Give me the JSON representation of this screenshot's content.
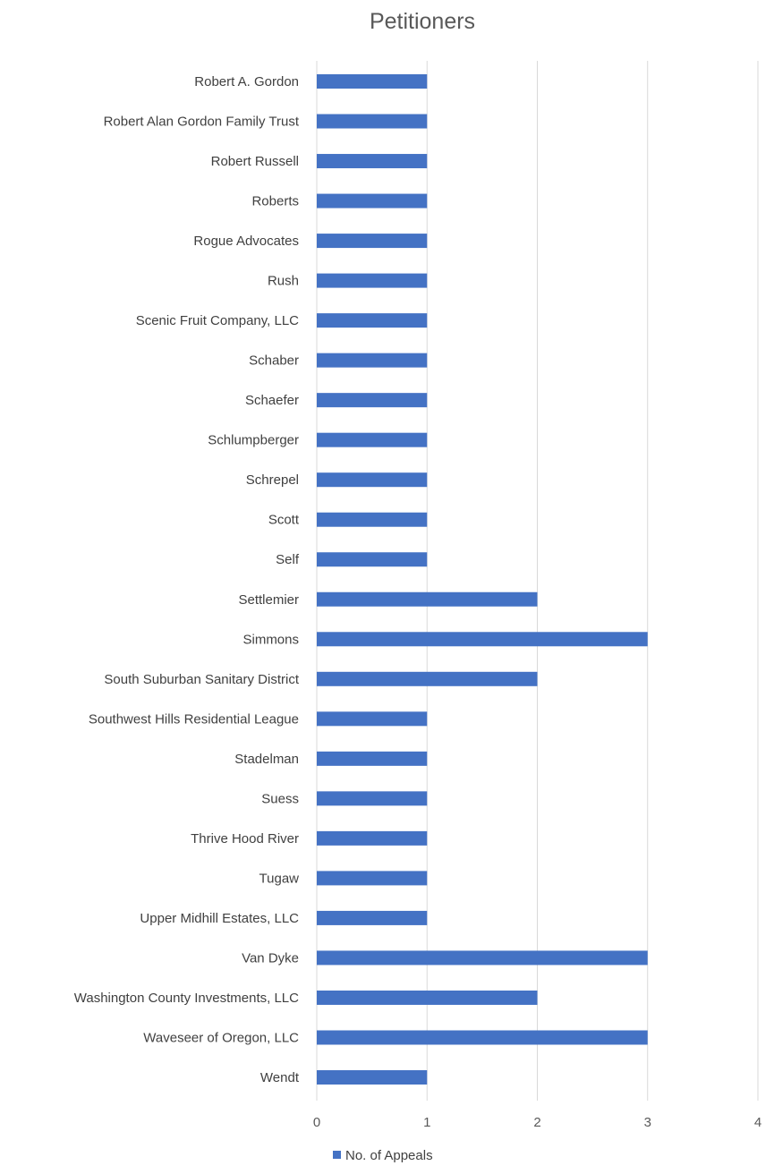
{
  "chart_data": {
    "type": "bar",
    "orientation": "horizontal",
    "title": "Petitioners",
    "categories": [
      "Robert A. Gordon",
      "Robert Alan Gordon Family Trust",
      "Robert Russell",
      "Roberts",
      "Rogue Advocates",
      "Rush",
      "Scenic Fruit Company, LLC",
      "Schaber",
      "Schaefer",
      "Schlumpberger",
      "Schrepel",
      "Scott",
      "Self",
      "Settlemier",
      "Simmons",
      "South Suburban Sanitary District",
      "Southwest Hills Residential League",
      "Stadelman",
      "Suess",
      "Thrive Hood River",
      "Tugaw",
      "Upper Midhill Estates, LLC",
      "Van Dyke",
      "Washington County Investments, LLC",
      "Waveseer of Oregon, LLC",
      "Wendt"
    ],
    "series": [
      {
        "name": "No. of Appeals",
        "color": "#4472c4",
        "values": [
          1,
          1,
          1,
          1,
          1,
          1,
          1,
          1,
          1,
          1,
          1,
          1,
          1,
          2,
          3,
          2,
          1,
          1,
          1,
          1,
          1,
          1,
          3,
          2,
          3,
          1
        ]
      }
    ],
    "xlim": [
      0,
      4
    ],
    "xticks": [
      "0",
      "1",
      "2",
      "3",
      "4"
    ],
    "grid": true,
    "legend_position": "bottom"
  }
}
